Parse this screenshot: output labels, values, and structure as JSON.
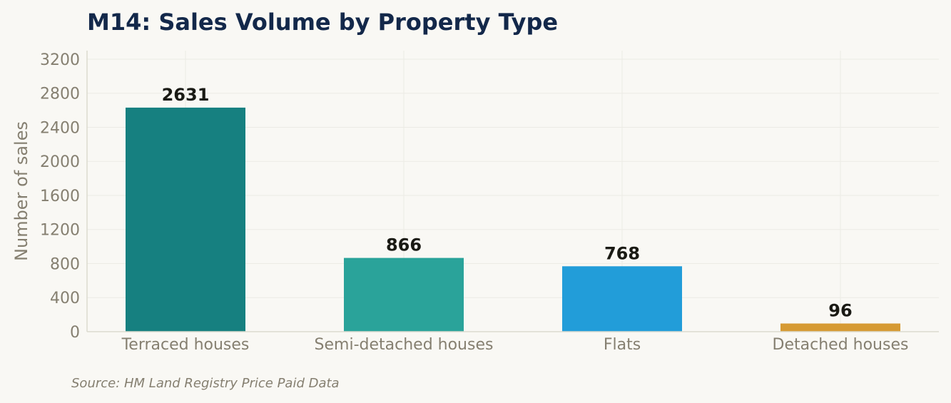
{
  "chart_data": {
    "type": "bar",
    "title": "M14: Sales Volume by Property Type",
    "ylabel": "Number of sales",
    "xlabel": "",
    "categories": [
      "Terraced houses",
      "Semi-detached houses",
      "Flats",
      "Detached houses"
    ],
    "values": [
      2631,
      866,
      768,
      96
    ],
    "data_labels": [
      "2631",
      "866",
      "768",
      "96"
    ],
    "bar_colors": [
      "#168080",
      "#2aa39a",
      "#229dd9",
      "#d69a33"
    ],
    "ylim": [
      0,
      3300
    ],
    "yticks": [
      0,
      400,
      800,
      1200,
      1600,
      2000,
      2400,
      2800,
      3200
    ],
    "ytick_labels": [
      "0",
      "400",
      "800",
      "1200",
      "1600",
      "2000",
      "2400",
      "2800",
      "3200"
    ],
    "grid": true,
    "legend": "none"
  },
  "source": "Source: HM Land Registry Price Paid Data",
  "colors": {
    "background": "#f9f8f4",
    "title": "#13284a",
    "axis_text": "#857f70",
    "data_label": "#1a1a14",
    "grid": "#ecebe5",
    "axis_line": "#dcdbcf"
  }
}
